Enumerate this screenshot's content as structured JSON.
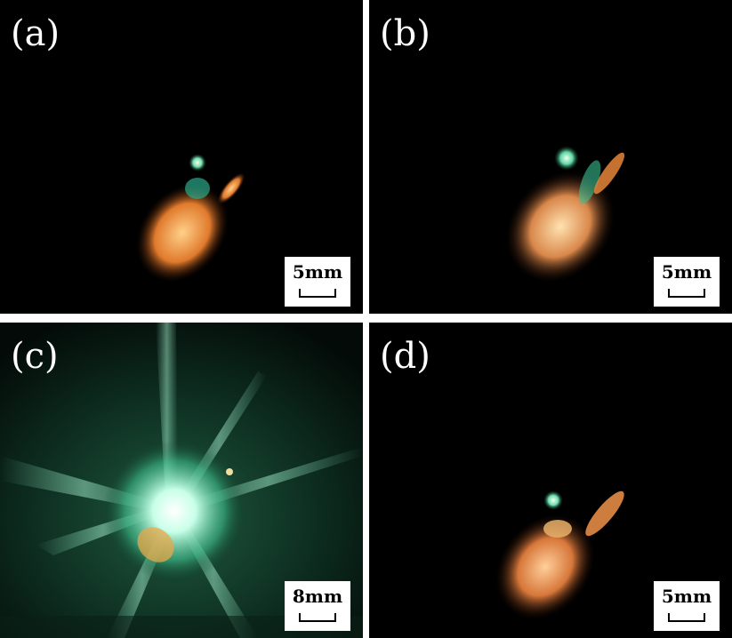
{
  "panels": [
    {
      "label": "(a)",
      "scale": "5mm"
    },
    {
      "label": "(b)",
      "scale": "5mm"
    },
    {
      "label": "(c)",
      "scale": "8mm"
    },
    {
      "label": "(d)",
      "scale": "5mm"
    }
  ]
}
